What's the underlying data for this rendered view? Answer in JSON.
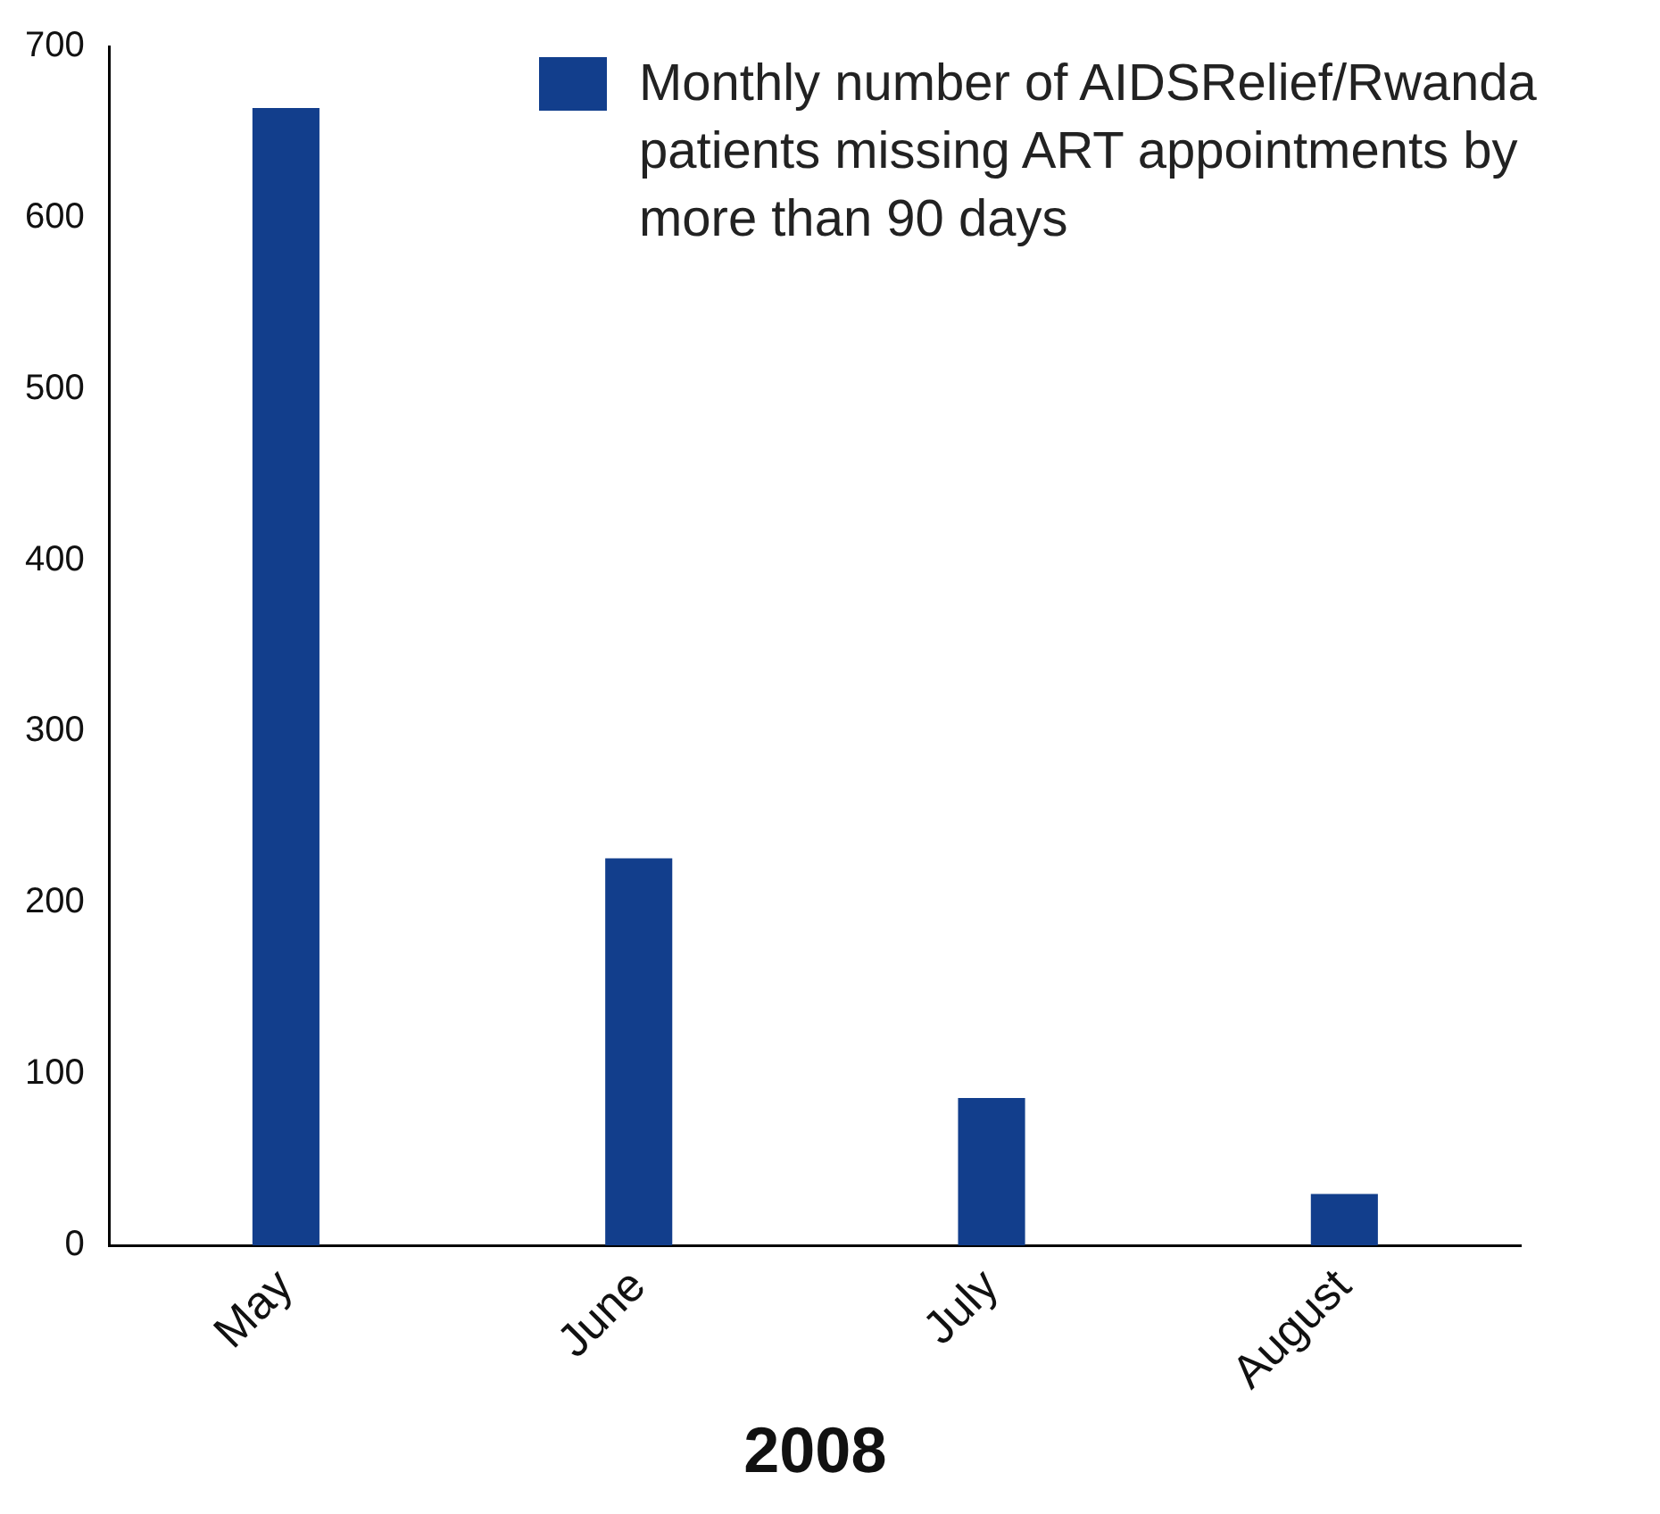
{
  "chart_data": {
    "type": "bar",
    "xlabel": "2008",
    "categories": [
      "May",
      "June",
      "July",
      "August"
    ],
    "series": [
      {
        "name": "Monthly number of AIDSRelief/Rwanda patients missing ART appointments by more than 90 days",
        "color": "#123e8c",
        "values": [
          664,
          226,
          86,
          30
        ]
      }
    ],
    "ylim": [
      0,
      700
    ],
    "yticks": [
      0,
      100,
      200,
      300,
      400,
      500,
      600,
      700
    ],
    "grid": false,
    "legend": "top right"
  }
}
